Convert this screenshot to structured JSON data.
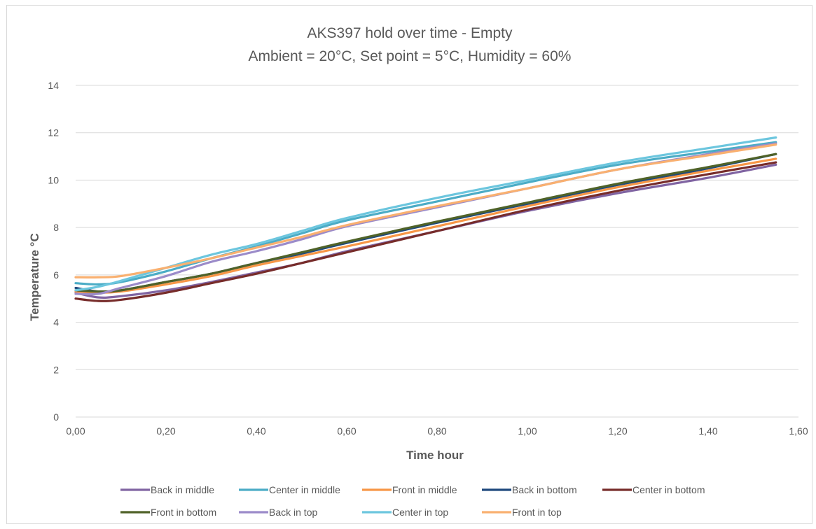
{
  "chart_data": {
    "type": "line",
    "title": [
      "AKS397 hold over time - Empty",
      "Ambient = 20°C, Set point = 5°C, Humidity = 60%"
    ],
    "xlabel": "Time hour",
    "ylabel": "Temperature °C",
    "xlim": [
      0,
      1.6
    ],
    "ylim": [
      0,
      14
    ],
    "x_ticks": [
      0,
      0.2,
      0.4,
      0.6,
      0.8,
      1.0,
      1.2,
      1.4,
      1.6
    ],
    "x_tick_labels": [
      "0,00",
      "0,20",
      "0,40",
      "0,60",
      "0,80",
      "1,00",
      "1,20",
      "1,40",
      "1,60"
    ],
    "y_ticks": [
      0,
      2,
      4,
      6,
      8,
      10,
      12,
      14
    ],
    "y_tick_labels": [
      "0",
      "2",
      "4",
      "6",
      "8",
      "10",
      "12",
      "14"
    ],
    "grid": "horizontal",
    "legend_position": "bottom",
    "x": [
      0.0,
      0.05,
      0.1,
      0.2,
      0.3,
      0.4,
      0.5,
      0.6,
      0.8,
      1.0,
      1.2,
      1.4,
      1.55
    ],
    "series": [
      {
        "name": "Back in middle",
        "color": "#8064a2",
        "values": [
          5.25,
          5.05,
          5.1,
          5.35,
          5.7,
          6.1,
          6.5,
          7.0,
          7.85,
          8.7,
          9.45,
          10.1,
          10.65
        ]
      },
      {
        "name": "Center in middle",
        "color": "#4bacc6",
        "values": [
          5.65,
          5.6,
          5.7,
          6.15,
          6.7,
          7.2,
          7.75,
          8.3,
          9.1,
          9.9,
          10.65,
          11.2,
          11.6
        ]
      },
      {
        "name": "Front in middle",
        "color": "#f79646",
        "values": [
          5.3,
          5.25,
          5.3,
          5.6,
          5.95,
          6.4,
          6.8,
          7.2,
          8.05,
          8.9,
          9.7,
          10.4,
          10.9
        ]
      },
      {
        "name": "Back in bottom",
        "color": "#1f497d",
        "values": [
          5.45,
          5.3,
          5.35,
          5.7,
          6.05,
          6.5,
          6.9,
          7.35,
          8.2,
          9.0,
          9.8,
          10.5,
          11.1
        ]
      },
      {
        "name": "Center in bottom",
        "color": "#772c2a",
        "values": [
          5.0,
          4.9,
          4.95,
          5.25,
          5.65,
          6.05,
          6.5,
          6.95,
          7.85,
          8.75,
          9.55,
          10.25,
          10.75
        ]
      },
      {
        "name": "Front in bottom",
        "color": "#4f6228",
        "values": [
          5.35,
          5.3,
          5.35,
          5.7,
          6.05,
          6.5,
          6.95,
          7.4,
          8.25,
          9.05,
          9.85,
          10.55,
          11.1
        ]
      },
      {
        "name": "Back in top",
        "color": "#9b8bc9",
        "values": [
          5.2,
          5.2,
          5.45,
          5.95,
          6.55,
          7.0,
          7.5,
          8.05,
          8.85,
          9.65,
          10.45,
          11.1,
          11.55
        ]
      },
      {
        "name": "Center in top",
        "color": "#6cc6de",
        "values": [
          5.35,
          5.5,
          5.75,
          6.3,
          6.85,
          7.3,
          7.85,
          8.4,
          9.25,
          10.0,
          10.75,
          11.35,
          11.8
        ]
      },
      {
        "name": "Front in top",
        "color": "#f9b070",
        "values": [
          5.9,
          5.9,
          5.95,
          6.3,
          6.7,
          7.15,
          7.6,
          8.1,
          8.9,
          9.65,
          10.45,
          11.05,
          11.5
        ]
      }
    ]
  }
}
